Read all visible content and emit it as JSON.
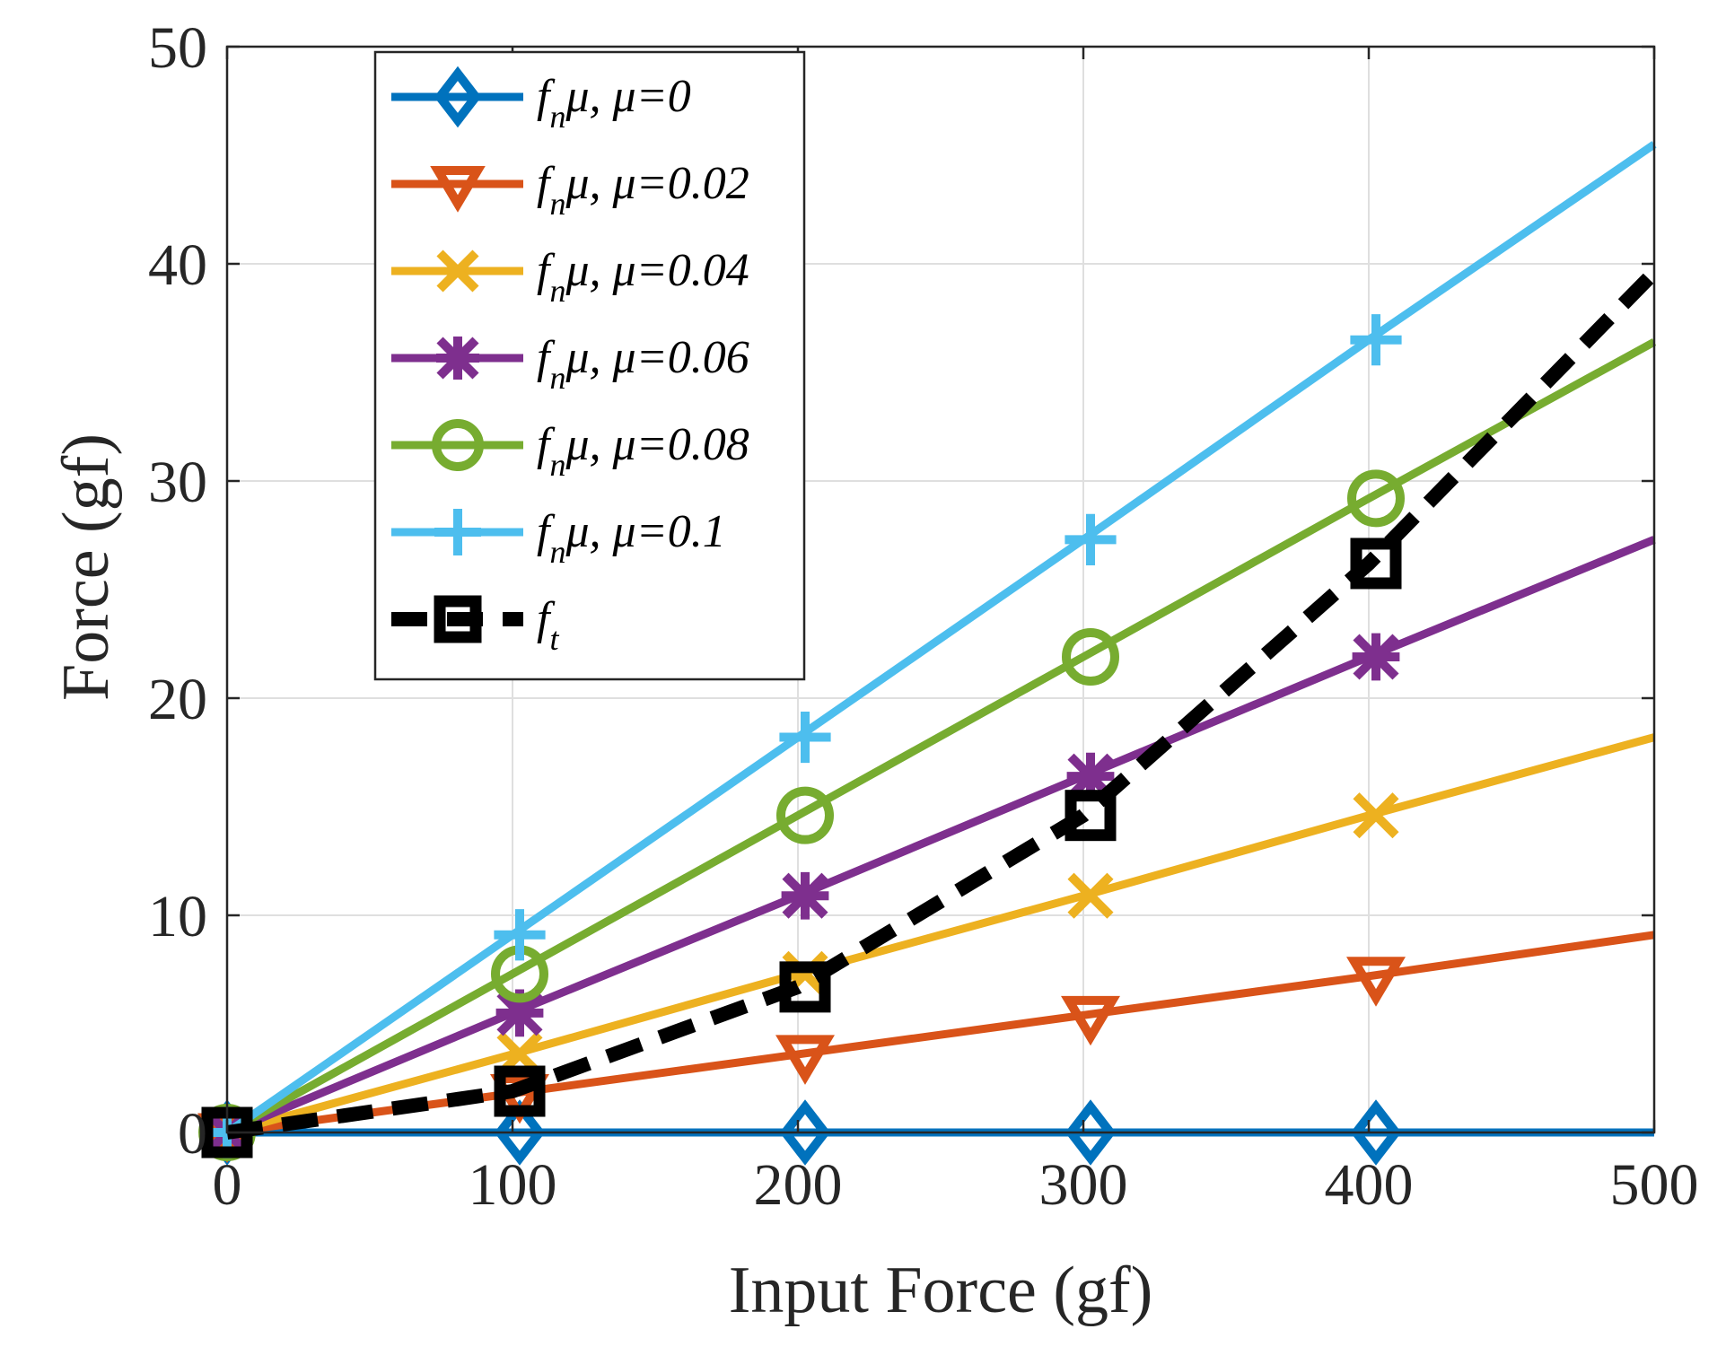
{
  "chart_data": {
    "type": "line",
    "title": "",
    "xlabel": "Input Force (gf)",
    "ylabel": "Force (gf)",
    "xlim": [
      0,
      500
    ],
    "ylim": [
      0,
      50
    ],
    "xticks": [
      "0",
      "100",
      "200",
      "300",
      "400",
      "500"
    ],
    "yticks": [
      "0",
      "10",
      "20",
      "30",
      "40",
      "50"
    ],
    "grid": true,
    "legend_position": "top-left",
    "x": [
      0,
      100,
      200,
      300,
      400,
      500
    ],
    "series": [
      {
        "name": "f_nμ, μ=0",
        "label_main": "f",
        "label_sub": "n",
        "label_rest": "μ, μ=0",
        "marker": "diamond",
        "line": "solid",
        "color": "#0072BD",
        "values": [
          0,
          0,
          0,
          0,
          0,
          0
        ]
      },
      {
        "name": "f_nμ, μ=0.02",
        "label_main": "f",
        "label_sub": "n",
        "label_rest": "μ, μ=0.02",
        "marker": "triangle-down",
        "line": "solid",
        "color": "#D95319",
        "values": [
          0,
          1.8,
          3.6,
          5.4,
          7.2,
          9.1
        ]
      },
      {
        "name": "f_nμ, μ=0.04",
        "label_main": "f",
        "label_sub": "n",
        "label_rest": "μ, μ=0.04",
        "marker": "x",
        "line": "solid",
        "color": "#EDB120",
        "values": [
          0,
          3.6,
          7.3,
          10.9,
          14.6,
          18.2
        ]
      },
      {
        "name": "f_nμ, μ=0.06",
        "label_main": "f",
        "label_sub": "n",
        "label_rest": "μ, μ=0.06",
        "marker": "asterisk",
        "line": "solid",
        "color": "#7E2F8E",
        "values": [
          0,
          5.5,
          10.9,
          16.4,
          21.9,
          27.3
        ]
      },
      {
        "name": "f_nμ, μ=0.08",
        "label_main": "f",
        "label_sub": "n",
        "label_rest": "μ, μ=0.08",
        "marker": "circle",
        "line": "solid",
        "color": "#77AC30",
        "values": [
          0,
          7.3,
          14.6,
          21.9,
          29.2,
          36.4
        ]
      },
      {
        "name": "f_nμ, μ=0.1",
        "label_main": "f",
        "label_sub": "n",
        "label_rest": "μ, μ=0.1",
        "marker": "plus",
        "line": "solid",
        "color": "#4DBEEE",
        "values": [
          0,
          9.1,
          18.2,
          27.3,
          36.5,
          45.5
        ]
      },
      {
        "name": "f_t",
        "label_main": "f",
        "label_sub": "t",
        "label_rest": "",
        "marker": "square",
        "line": "dashed",
        "color": "#000000",
        "values": [
          0,
          1.9,
          6.7,
          14.6,
          26.2,
          39.6
        ]
      }
    ]
  }
}
